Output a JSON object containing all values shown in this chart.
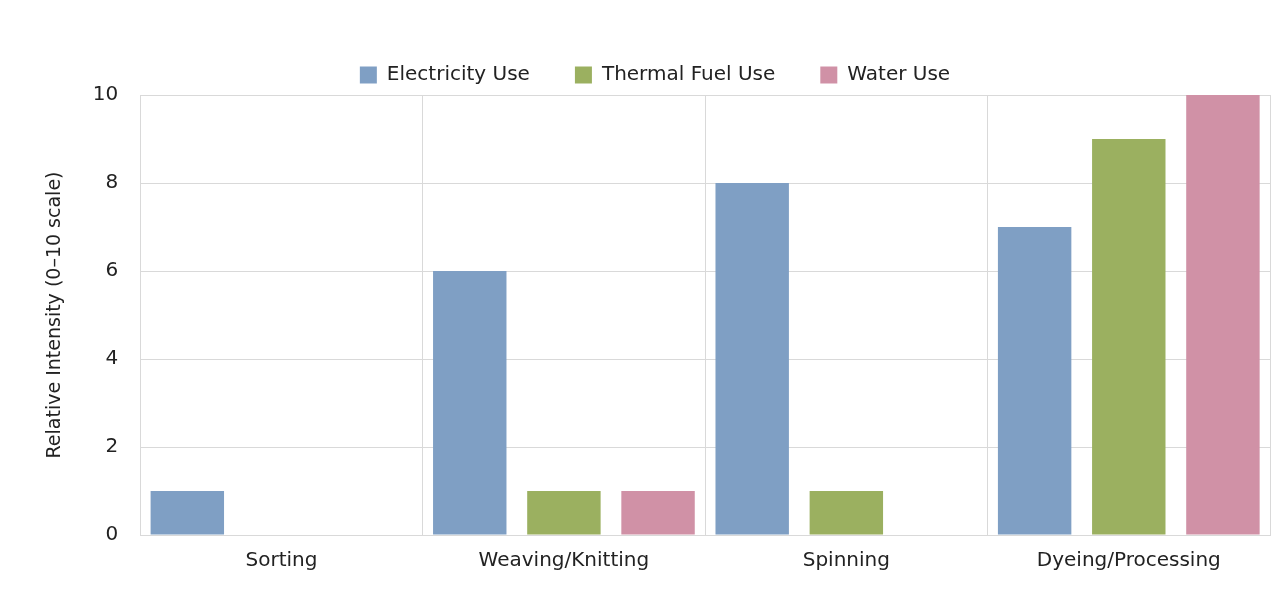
{
  "chart_data": {
    "type": "bar",
    "ylabel": "Relative Intensity (0–10 scale)",
    "categories": [
      "Sorting",
      "Weaving/Knitting",
      "Spinning",
      "Dyeing/Processing"
    ],
    "series": [
      {
        "name": "Electricity Use",
        "color": "#7f9fc4",
        "values": [
          1,
          6,
          8,
          7
        ]
      },
      {
        "name": "Thermal Fuel Use",
        "color": "#9bb060",
        "values": [
          0,
          1,
          1,
          9
        ]
      },
      {
        "name": "Water Use",
        "color": "#d091a6",
        "values": [
          0,
          1,
          0,
          10
        ]
      }
    ],
    "ylim": [
      0,
      10
    ],
    "yticks": [
      0,
      2,
      4,
      6,
      8,
      10
    ],
    "grid": true,
    "legend": "top"
  }
}
